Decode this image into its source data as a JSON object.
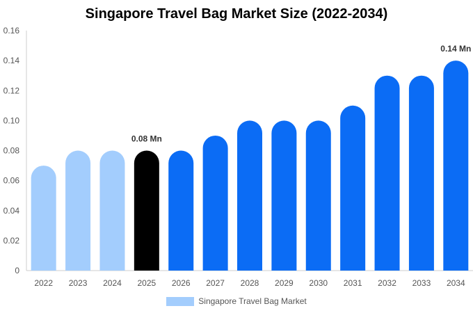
{
  "chart_data": {
    "type": "bar",
    "title": "Singapore Travel Bag Market Size (2022-2034)",
    "xlabel": "",
    "ylabel": "",
    "categories": [
      "2022",
      "2023",
      "2024",
      "2025",
      "2026",
      "2027",
      "2028",
      "2029",
      "2030",
      "2031",
      "2032",
      "2033",
      "2034"
    ],
    "series": [
      {
        "name": "Singapore Travel Bag Market",
        "values": [
          0.07,
          0.08,
          0.08,
          0.08,
          0.08,
          0.09,
          0.1,
          0.1,
          0.1,
          0.11,
          0.13,
          0.13,
          0.14
        ]
      }
    ],
    "ylim": [
      0,
      0.16
    ],
    "yticks": [
      "0",
      "0.02",
      "0.04",
      "0.06",
      "0.08",
      "0.10",
      "0.12",
      "0.14",
      "0.16"
    ],
    "data_labels": [
      {
        "category": "2025",
        "text": "0.08 Mn"
      },
      {
        "category": "2034",
        "text": "0.14 Mn"
      }
    ],
    "colors": {
      "historical": "#a3cdfd",
      "current": "#000000",
      "forecast": "#0b6cf5"
    },
    "bar_groups": [
      "historical",
      "historical",
      "historical",
      "current",
      "forecast",
      "forecast",
      "forecast",
      "forecast",
      "forecast",
      "forecast",
      "forecast",
      "forecast",
      "forecast"
    ],
    "grid": false,
    "legend": "bottom-center"
  }
}
